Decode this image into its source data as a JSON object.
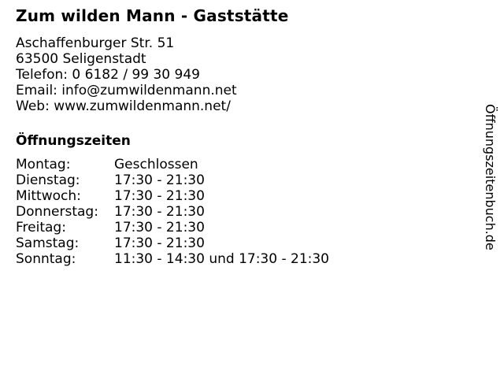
{
  "business": {
    "title": "Zum wilden Mann - Gaststätte",
    "address_street": "Aschaffenburger Str. 51",
    "address_city": "63500 Seligenstadt",
    "phone": "Telefon: 0 6182 / 99 30 949",
    "email": "Email: info@zumwildenmann.net",
    "web": "Web: www.zumwildenmann.net/"
  },
  "hours": {
    "heading": "Öffnungszeiten",
    "rows": [
      {
        "day": "Montag:",
        "time": "Geschlossen"
      },
      {
        "day": "Dienstag:",
        "time": "17:30 - 21:30"
      },
      {
        "day": "Mittwoch:",
        "time": "17:30 - 21:30"
      },
      {
        "day": "Donnerstag:",
        "time": "17:30 - 21:30"
      },
      {
        "day": "Freitag:",
        "time": "17:30 - 21:30"
      },
      {
        "day": "Samstag:",
        "time": "17:30 - 21:30"
      },
      {
        "day": "Sonntag:",
        "time": "11:30 - 14:30 und 17:30 - 21:30"
      }
    ]
  },
  "watermark": {
    "text": "Öffnungszeitenbuch.de"
  },
  "colors": {
    "text": "#000000",
    "background": "#ffffff"
  }
}
